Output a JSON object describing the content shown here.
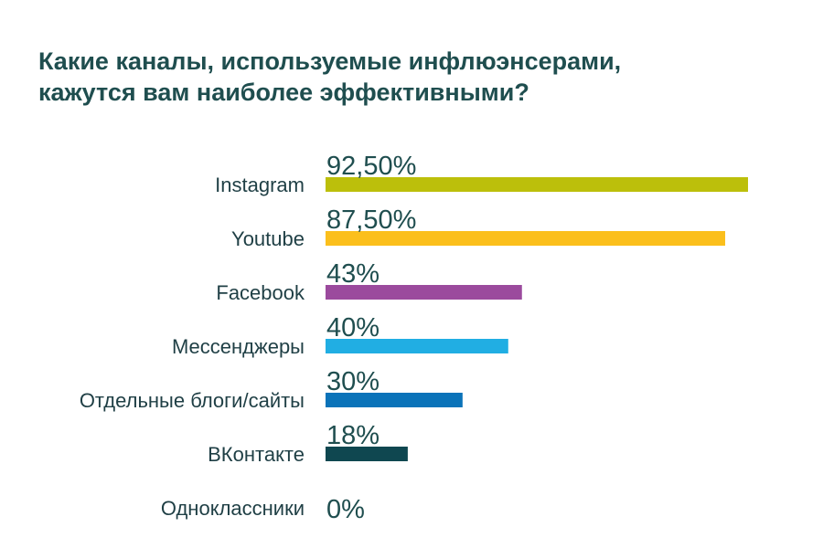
{
  "title_lines": [
    "Какие каналы, используемые инфлюэнсерами,",
    "кажутся вам наиболее эффективными?"
  ],
  "chart_data": {
    "type": "bar",
    "orientation": "horizontal",
    "title": "Какие каналы, используемые инфлюэнсерами, кажутся вам наиболее эффективными?",
    "categories": [
      "Instagram",
      "Youtube",
      "Facebook",
      "Мессенджеры",
      "Отдельные блоги/сайты",
      "ВКонтакте",
      "Одноклассники"
    ],
    "values": [
      92.5,
      87.5,
      43,
      40,
      30,
      18,
      0
    ],
    "value_labels": [
      "92,50%",
      "87,50%",
      "43%",
      "40%",
      "30%",
      "18%",
      "0%"
    ],
    "colors": [
      "#bcbf0b",
      "#fbbf1c",
      "#9b4a9d",
      "#21aee3",
      "#0b73b9",
      "#0f4750",
      "#cccccc"
    ],
    "xlim": [
      0,
      100
    ],
    "grid": false,
    "legend": "none"
  }
}
